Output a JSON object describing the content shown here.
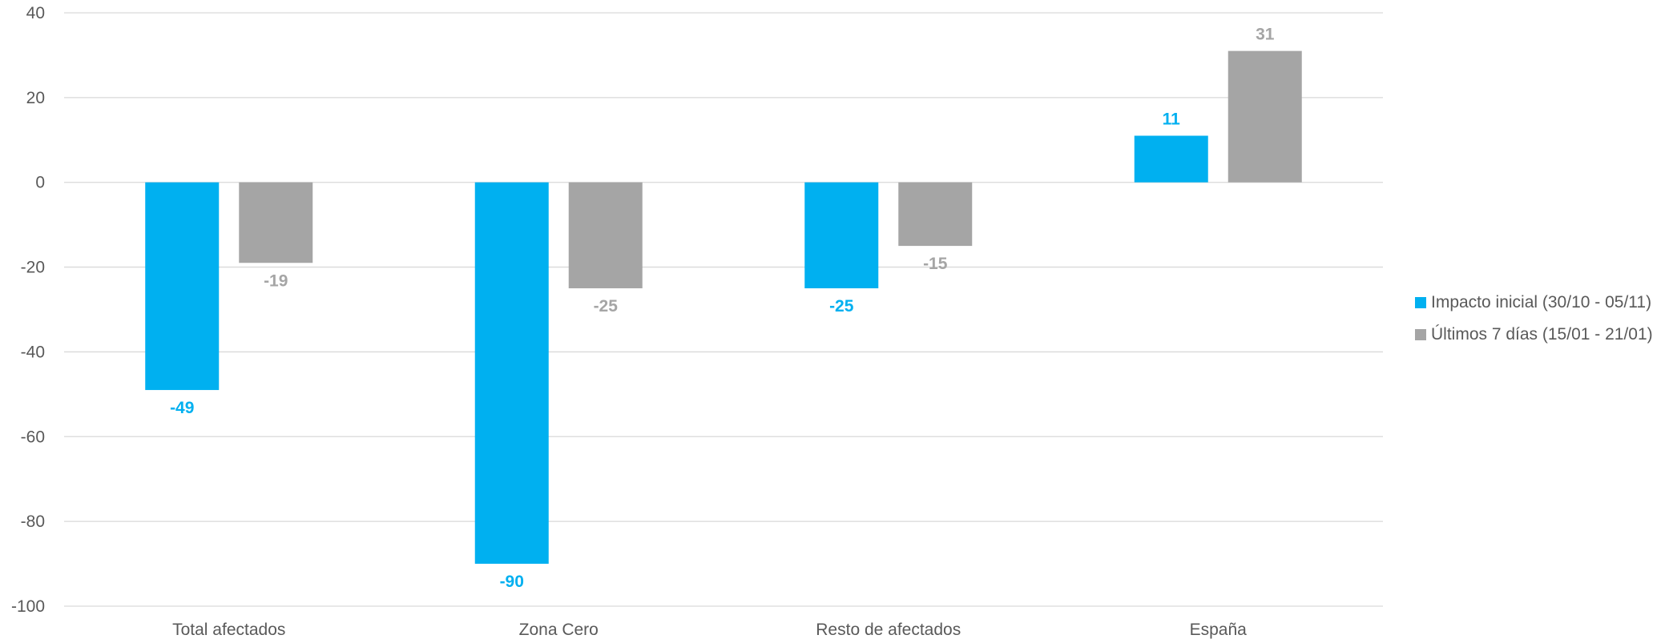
{
  "chart_data": {
    "type": "bar",
    "categories": [
      "Total afectados",
      "Zona Cero",
      "Resto de afectados",
      "España"
    ],
    "series": [
      {
        "name": "Impacto inicial (30/10 - 05/11)",
        "values": [
          -49,
          -90,
          -25,
          11
        ],
        "color": "#00b0f0"
      },
      {
        "name": "Últimos 7 días (15/01 - 21/01)",
        "values": [
          -19,
          -25,
          -15,
          31
        ],
        "color": "#a5a5a5"
      }
    ],
    "ylim": [
      -100,
      40
    ],
    "yticks": [
      40,
      20,
      0,
      -20,
      -40,
      -60,
      -80,
      -100
    ],
    "grid": true,
    "legend_position": "right",
    "xlabel": "",
    "ylabel": ""
  }
}
